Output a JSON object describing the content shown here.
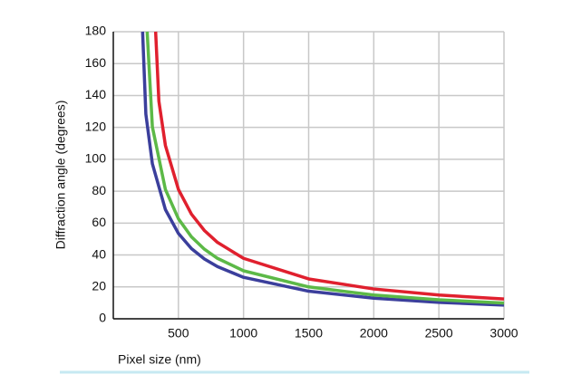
{
  "chart_data": {
    "type": "line",
    "x_label": "Pixel size (nm)",
    "y_label": "Diffraction angle (degrees)",
    "xlim": [
      0,
      3000
    ],
    "xticks": [
      500,
      1000,
      1500,
      2000,
      2500,
      3000
    ],
    "ylim": [
      0,
      180
    ],
    "yticks": [
      0,
      20,
      40,
      60,
      80,
      100,
      120,
      140,
      160,
      180
    ],
    "grid": true,
    "series": [
      {
        "color": "#3b3f9c",
        "x": [
          225,
          250,
          300,
          400,
          500,
          600,
          700,
          800,
          1000,
          1500,
          2000,
          2500,
          3000
        ],
        "values": [
          180,
          128.3,
          97.2,
          68.5,
          53.5,
          44.0,
          37.5,
          32.7,
          26.0,
          17.3,
          12.9,
          10.3,
          8.6
        ]
      },
      {
        "color": "#5cb947",
        "x": [
          260,
          300,
          400,
          500,
          600,
          700,
          800,
          1000,
          1500,
          2000,
          2500,
          3000
        ],
        "values": [
          180,
          120.3,
          81.1,
          62.7,
          51.4,
          43.6,
          37.9,
          30.1,
          20.0,
          14.9,
          11.9,
          9.9
        ]
      },
      {
        "color": "#e0202e",
        "x": [
          325,
          350,
          400,
          500,
          600,
          700,
          800,
          1000,
          1500,
          2000,
          2500,
          3000
        ],
        "values": [
          180,
          136.4,
          108.7,
          81.1,
          65.6,
          55.3,
          47.9,
          37.9,
          25.0,
          18.7,
          14.9,
          12.4
        ]
      }
    ]
  }
}
